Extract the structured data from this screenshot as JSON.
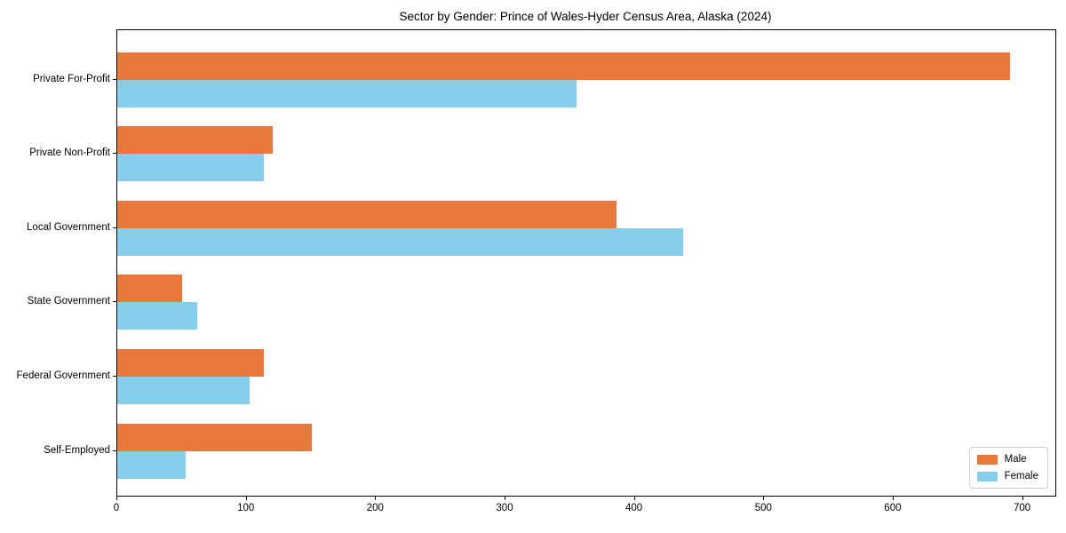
{
  "chart": {
    "title": "Sector by Gender: Prince of Wales-Hyder Census Area, Alaska (2024)"
  },
  "chart_data": {
    "type": "bar",
    "orientation": "horizontal",
    "title": "Sector by Gender: Prince of Wales-Hyder Census Area, Alaska (2024)",
    "xlabel": "",
    "ylabel": "",
    "categories": [
      "Private For-Profit",
      "Private Non-Profit",
      "Local Government",
      "State Government",
      "Federal Government",
      "Self-Employed"
    ],
    "series": [
      {
        "name": "Male",
        "color": "#e8793d",
        "values": [
          690,
          120,
          386,
          50,
          113,
          150
        ]
      },
      {
        "name": "Female",
        "color": "#87ceeb",
        "values": [
          355,
          113,
          437,
          62,
          102,
          53
        ]
      }
    ],
    "xlim": [
      0,
      725
    ],
    "xticks": [
      0,
      100,
      200,
      300,
      400,
      500,
      600,
      700
    ],
    "grid": false,
    "legend_position": "lower right",
    "colors": {
      "male": "#e8793d",
      "female": "#87ceeb",
      "spine": "#000000",
      "legend_border": "#cccccc"
    }
  }
}
